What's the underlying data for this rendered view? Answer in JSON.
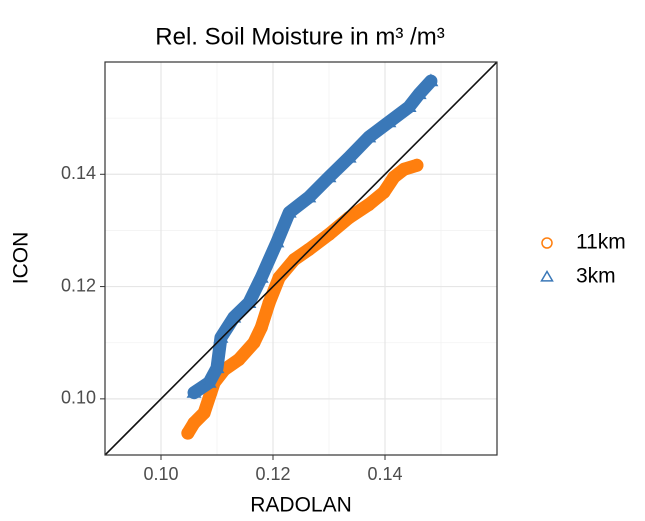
{
  "chart_data": {
    "type": "scatter",
    "title": "Rel. Soil Moisture in m³ /m³",
    "x_label": "RADOLAN",
    "y_label": "ICON",
    "xlim": [
      0.09,
      0.16
    ],
    "ylim": [
      0.09,
      0.16
    ],
    "xticks": [
      {
        "value": 0.1,
        "label": "0.10"
      },
      0.12,
      0.14
    ],
    "yticks": [
      {
        "value": 0.1,
        "label": "0.10"
      },
      0.12,
      0.14
    ],
    "grid": true,
    "diagonal": true,
    "legend": "right",
    "series": [
      {
        "name": "11km",
        "color": "#ff7f0e",
        "marker": "circle",
        "x": [
          0.1048,
          0.1059,
          0.1077,
          0.1089,
          0.1095,
          0.1113,
          0.1139,
          0.1166,
          0.1179,
          0.1193,
          0.1211,
          0.1238,
          0.1264,
          0.13,
          0.1336,
          0.1371,
          0.1398,
          0.1416,
          0.1434,
          0.1457
        ],
        "values": [
          0.0939,
          0.0957,
          0.0975,
          0.1011,
          0.1029,
          0.1052,
          0.107,
          0.11,
          0.1127,
          0.1171,
          0.1216,
          0.1248,
          0.1266,
          0.1293,
          0.1323,
          0.1346,
          0.1368,
          0.1395,
          0.1409,
          0.1416
        ]
      },
      {
        "name": "3km",
        "color": "#3a78b8",
        "marker": "triangle",
        "x": [
          0.1059,
          0.1086,
          0.11,
          0.1107,
          0.113,
          0.1157,
          0.1179,
          0.1207,
          0.1229,
          0.1264,
          0.13,
          0.1336,
          0.1371,
          0.1407,
          0.1443,
          0.1461,
          0.1482
        ],
        "values": [
          0.1011,
          0.1029,
          0.1055,
          0.1109,
          0.1145,
          0.1171,
          0.1216,
          0.1279,
          0.1332,
          0.1359,
          0.1395,
          0.143,
          0.1466,
          0.1493,
          0.152,
          0.1543,
          0.1566
        ]
      }
    ]
  }
}
